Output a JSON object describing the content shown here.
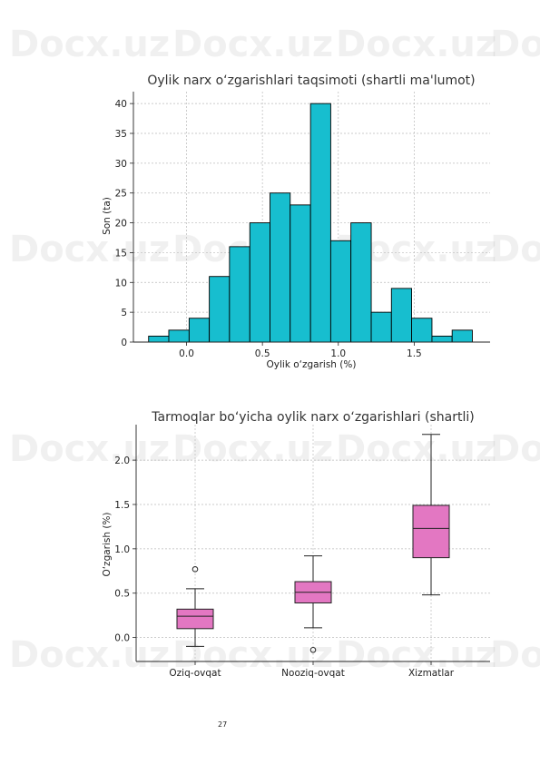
{
  "watermark": {
    "text": "Docx.uz"
  },
  "page_number": "27",
  "chart_data": [
    {
      "type": "histogram",
      "title": "Oylik narx o‘zgarishlari taqsimoti (shartli ma'lumot)",
      "xlabel": "Oylik o‘zgarish (%)",
      "ylabel": "Son (ta)",
      "xlim": [
        -0.35,
        2.0
      ],
      "ylim": [
        0,
        42
      ],
      "xticks": [
        0.0,
        0.5,
        1.0,
        1.5
      ],
      "xtick_labels": [
        "0.0",
        "0.5",
        "1.0",
        "1.5"
      ],
      "yticks": [
        0,
        5,
        10,
        15,
        20,
        25,
        30,
        35,
        40
      ],
      "ytick_labels": [
        "0",
        "5",
        "10",
        "15",
        "20",
        "25",
        "30",
        "35",
        "40"
      ],
      "grid": true,
      "color": "#17becf",
      "bin_edges": [
        -0.25,
        -0.117,
        0.017,
        0.15,
        0.283,
        0.417,
        0.55,
        0.683,
        0.817,
        0.95,
        1.083,
        1.217,
        1.35,
        1.483,
        1.617,
        1.75,
        1.883
      ],
      "counts": [
        1,
        2,
        4,
        11,
        16,
        20,
        25,
        23,
        40,
        17,
        20,
        5,
        9,
        4,
        1,
        2
      ]
    },
    {
      "type": "box",
      "title": "Tarmoqlar bo‘yicha oylik narx o‘zgarishlari (shartli)",
      "xlabel": "",
      "ylabel": "O‘zgarish (%)",
      "ylim": [
        -0.27,
        2.4
      ],
      "yticks": [
        0.0,
        0.5,
        1.0,
        1.5,
        2.0
      ],
      "ytick_labels": [
        "0.0",
        "0.5",
        "1.0",
        "1.5",
        "2.0"
      ],
      "grid": true,
      "color": "#e377c2",
      "categories": [
        "Oziq-ovqat",
        "Nooziq-ovqat",
        "Xizmatlar"
      ],
      "boxes": [
        {
          "whisker_low": -0.1,
          "q1": 0.1,
          "median": 0.24,
          "q3": 0.32,
          "whisker_high": 0.55,
          "outliers": [
            0.77
          ]
        },
        {
          "whisker_low": 0.11,
          "q1": 0.39,
          "median": 0.51,
          "q3": 0.63,
          "whisker_high": 0.92,
          "outliers": [
            -0.14
          ]
        },
        {
          "whisker_low": 0.48,
          "q1": 0.9,
          "median": 1.23,
          "q3": 1.49,
          "whisker_high": 2.29,
          "outliers": []
        }
      ]
    }
  ]
}
